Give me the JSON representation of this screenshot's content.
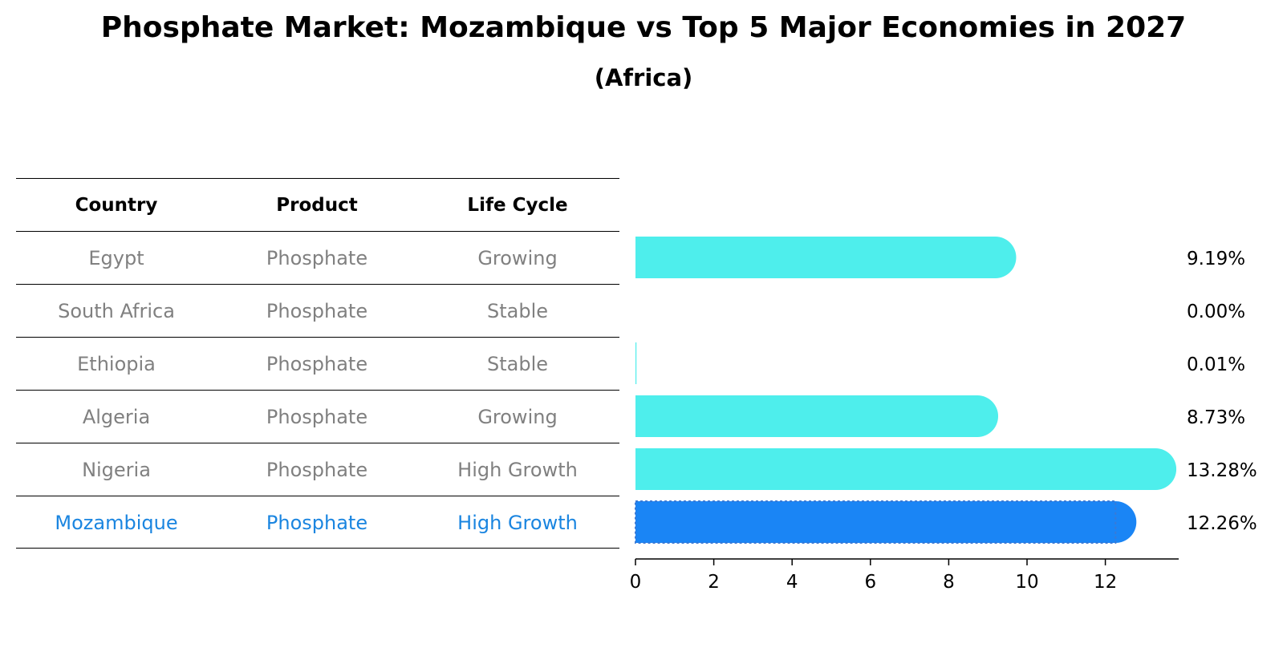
{
  "title": "Phosphate Market: Mozambique vs Top 5 Major Economies in 2027",
  "subtitle": "(Africa)",
  "table": {
    "headers": [
      "Country",
      "Product",
      "Life Cycle"
    ],
    "rows": [
      [
        "Egypt",
        "Phosphate",
        "Growing"
      ],
      [
        "South Africa",
        "Phosphate",
        "Stable"
      ],
      [
        "Ethiopia",
        "Phosphate",
        "Stable"
      ],
      [
        "Algeria",
        "Phosphate",
        "Growing"
      ],
      [
        "Nigeria",
        "Phosphate",
        "High Growth"
      ],
      [
        "Mozambique",
        "Phosphate",
        "High Growth"
      ]
    ]
  },
  "colors": {
    "bar": "#4eeeec",
    "highlight": "#1a85f5",
    "highlight_text": "#1a85e0",
    "text_muted": "#808080"
  },
  "chart_data": {
    "type": "bar",
    "orientation": "horizontal",
    "title": "Phosphate Market: Mozambique vs Top 5 Major Economies in 2027",
    "subtitle": "(Africa)",
    "categories": [
      "Egypt",
      "South Africa",
      "Ethiopia",
      "Algeria",
      "Nigeria",
      "Mozambique"
    ],
    "values": [
      9.19,
      0.0,
      0.01,
      8.73,
      13.28,
      12.26
    ],
    "value_labels": [
      "9.19%",
      "0.00%",
      "0.01%",
      "8.73%",
      "13.28%",
      "12.26%"
    ],
    "highlight": "Mozambique",
    "xlim": [
      0,
      13.9
    ],
    "xticks": [
      0,
      2,
      4,
      6,
      8,
      10,
      12
    ],
    "xlabel": "",
    "ylabel": "",
    "grid": false,
    "legend": "none"
  }
}
